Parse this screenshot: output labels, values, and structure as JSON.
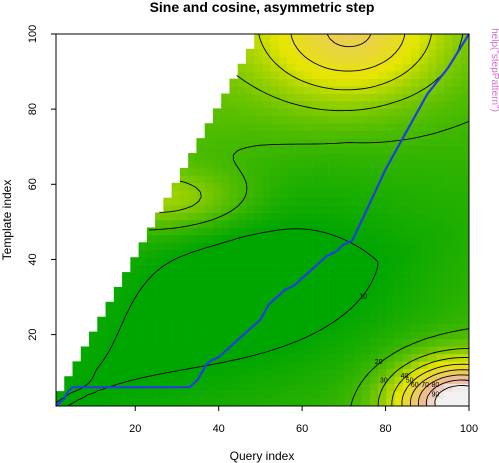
{
  "chart_data": {
    "type": "heatmap",
    "title": "Sine and cosine, asymmetric step",
    "xlabel": "Query index",
    "ylabel": "Template index",
    "xlim": [
      1,
      100
    ],
    "ylim": [
      1,
      100
    ],
    "x_ticks": [
      20,
      40,
      60,
      80,
      100
    ],
    "y_ticks": [
      20,
      40,
      60,
      80,
      100
    ],
    "side_note": "help(\"stepPattern\")",
    "contour_levels": [
      10,
      20,
      30,
      40,
      50,
      60,
      70,
      80,
      90
    ],
    "region": "defined only where template index <= 2 x query index",
    "colors": {
      "low": "#00a600",
      "mid": "#e6e600",
      "high": "#eeb99f",
      "top": "#f2f2f2",
      "path": "#1f3fe0"
    },
    "warping_path": {
      "x": [
        1,
        2,
        3,
        4,
        5,
        10,
        20,
        33,
        34,
        35,
        36,
        37,
        38,
        40,
        42,
        44,
        46,
        48,
        50,
        52,
        54,
        56,
        58,
        60,
        62,
        64,
        66,
        68,
        70,
        72,
        75,
        80,
        85,
        90,
        95,
        100
      ],
      "y": [
        1,
        2,
        3,
        5,
        6,
        6,
        6,
        6,
        7,
        8,
        10,
        12,
        13,
        14,
        16,
        18,
        20,
        22,
        24,
        28,
        30,
        32,
        33,
        35,
        37,
        39,
        41,
        42,
        44,
        45,
        52,
        64,
        74,
        84,
        91,
        100
      ]
    }
  }
}
